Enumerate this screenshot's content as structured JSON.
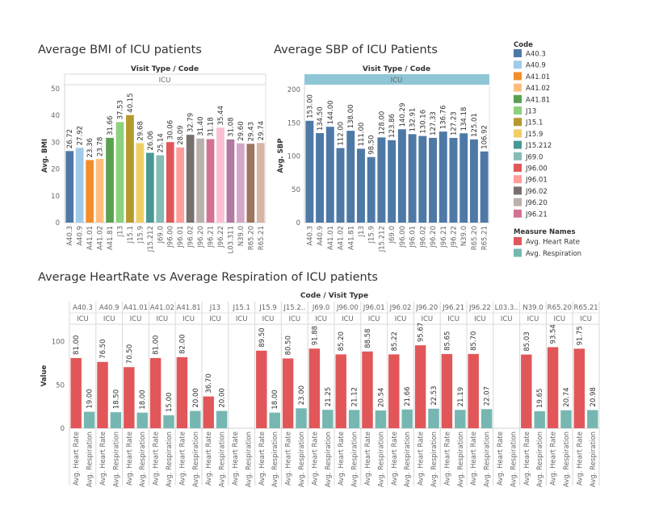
{
  "chart_data": [
    {
      "type": "bar",
      "title": "Average BMI of ICU patients",
      "header": "Visit Type / Code",
      "panel": "ICU",
      "ylabel": "Avg. BMI",
      "ylim": [
        0,
        50
      ],
      "yticks": [
        0,
        10,
        20,
        30,
        40,
        50
      ],
      "categories": [
        "A40.3",
        "A40.9",
        "A41.01",
        "A41.02",
        "A41.81",
        "J13",
        "J15.1",
        "J15.9",
        "J15.212",
        "J69.0",
        "J96.00",
        "J96.01",
        "J96.02",
        "J96.20",
        "J96.21",
        "J96.22",
        "L03.311",
        "N39.0",
        "R65.20",
        "R65.21"
      ],
      "values": [
        26.72,
        27.92,
        23.36,
        23.78,
        31.66,
        37.53,
        40.15,
        29.68,
        26.06,
        25.14,
        30.06,
        28.09,
        32.79,
        31.4,
        31.18,
        35.44,
        31.08,
        29.6,
        29.43,
        29.74
      ],
      "labels": [
        "26.72",
        "27.92",
        "23.36",
        "23.78",
        "31.66",
        "37.53",
        "40.15",
        "29.68",
        "26.06",
        "25.14",
        "30.06",
        "28.09",
        "32.79",
        "31.40",
        "31.18",
        "35.44",
        "31.08",
        "29.60",
        "29.43",
        "29.74"
      ]
    },
    {
      "type": "bar",
      "title": "Average SBP of ICU Patients",
      "header": "Visit Type / Code",
      "panel": "ICU",
      "ylabel": "Avg. SBP",
      "ylim": [
        0,
        200
      ],
      "yticks": [
        0,
        50,
        100,
        150,
        200
      ],
      "categories": [
        "A40.3",
        "A40.9",
        "A41.01",
        "A41.02",
        "A41.81",
        "J13",
        "J15.9",
        "J15.212",
        "J69.0",
        "J96.00",
        "J96.01",
        "J96.02",
        "J96.20",
        "J96.21",
        "J96.22",
        "N39.0",
        "R65.20",
        "R65.21"
      ],
      "values": [
        153.0,
        134.5,
        144.0,
        112.0,
        138.0,
        111.0,
        98.5,
        128.0,
        123.86,
        140.29,
        132.91,
        130.16,
        127.33,
        136.76,
        127.23,
        134.18,
        125.01,
        106.92
      ],
      "labels": [
        "153.00",
        "134.50",
        "144.00",
        "112.00",
        "138.00",
        "111.00",
        "98.50",
        "128.00",
        "123.86",
        "140.29",
        "132.91",
        "130.16",
        "127.33",
        "136.76",
        "127.23",
        "134.18",
        "125.01",
        "106.92"
      ],
      "color": "#4e79a7"
    },
    {
      "type": "bar",
      "title": "Average HeartRate vs Average Respiration of ICU patients",
      "header": "Code / Visit Type",
      "ylabel": "Value",
      "ylim": [
        0,
        120
      ],
      "yticks": [
        0,
        50,
        100
      ],
      "panel_sub": "ICU",
      "categories": [
        "A40.3",
        "A40.9",
        "A41.01",
        "A41.02",
        "A41.81",
        "J13",
        "J15.1",
        "J15.9",
        "J15.2..",
        "J69.0",
        "J96.00",
        "J96.01",
        "J96.02",
        "J96.20",
        "J96.21",
        "J96.22",
        "L03.3..",
        "N39.0",
        "R65.20",
        "R65.21"
      ],
      "measures": [
        "Avg. Heart Rate",
        "Avg. Respiration"
      ],
      "series": [
        {
          "name": "Avg. Heart Rate",
          "color": "#e15759",
          "values": [
            81.0,
            76.5,
            70.5,
            81.0,
            82.0,
            36.7,
            null,
            89.5,
            80.5,
            91.88,
            85.2,
            88.58,
            85.22,
            95.67,
            85.65,
            85.7,
            null,
            85.03,
            93.54,
            91.75
          ],
          "labels": [
            "81.00",
            "76.50",
            "70.50",
            "81.00",
            "82.00",
            "36.70",
            "",
            "89.50",
            "80.50",
            "91.88",
            "85.20",
            "88.58",
            "85.22",
            "95.67",
            "85.65",
            "85.70",
            "",
            "85.03",
            "93.54",
            "91.75"
          ]
        },
        {
          "name": "Avg. Respiration",
          "color": "#76b7b2",
          "values": [
            19.0,
            18.5,
            18.0,
            15.0,
            20.0,
            20.0,
            null,
            18.0,
            23.0,
            21.25,
            21.12,
            20.54,
            21.66,
            22.53,
            21.19,
            22.07,
            null,
            19.65,
            20.74,
            20.98
          ],
          "labels": [
            "19.00",
            "18.50",
            "18.00",
            "15.00",
            "20.00",
            "20.00",
            "",
            "18.00",
            "23.00",
            "21.25",
            "21.12",
            "20.54",
            "21.66",
            "22.53",
            "21.19",
            "22.07",
            "",
            "19.65",
            "20.74",
            "20.98"
          ]
        }
      ]
    }
  ],
  "legend": {
    "code_title": "Code",
    "codes": [
      {
        "name": "A40.3",
        "color": "#4e79a7"
      },
      {
        "name": "A40.9",
        "color": "#a0cbe8"
      },
      {
        "name": "A41.01",
        "color": "#f28e2b"
      },
      {
        "name": "A41.02",
        "color": "#ffbe7d"
      },
      {
        "name": "A41.81",
        "color": "#59a14f"
      },
      {
        "name": "J13",
        "color": "#8cd17d"
      },
      {
        "name": "J15.1",
        "color": "#b6992d"
      },
      {
        "name": "J15.9",
        "color": "#f1ce63"
      },
      {
        "name": "J15.212",
        "color": "#499894"
      },
      {
        "name": "J69.0",
        "color": "#86bcb6"
      },
      {
        "name": "J96.00",
        "color": "#e15759"
      },
      {
        "name": "J96.01",
        "color": "#ff9d9a"
      },
      {
        "name": "J96.02",
        "color": "#79706e"
      },
      {
        "name": "J96.20",
        "color": "#bab0ac"
      },
      {
        "name": "J96.21",
        "color": "#d37295"
      }
    ],
    "bmi_extra_colors": [
      "#fabfd2",
      "#b07aa1",
      "#d4a6c8",
      "#9d7660",
      "#d7b5a6"
    ],
    "measure_title": "Measure Names",
    "measures": [
      {
        "name": "Avg. Heart Rate",
        "color": "#e15759"
      },
      {
        "name": "Avg. Respiration",
        "color": "#76b7b2"
      }
    ]
  }
}
